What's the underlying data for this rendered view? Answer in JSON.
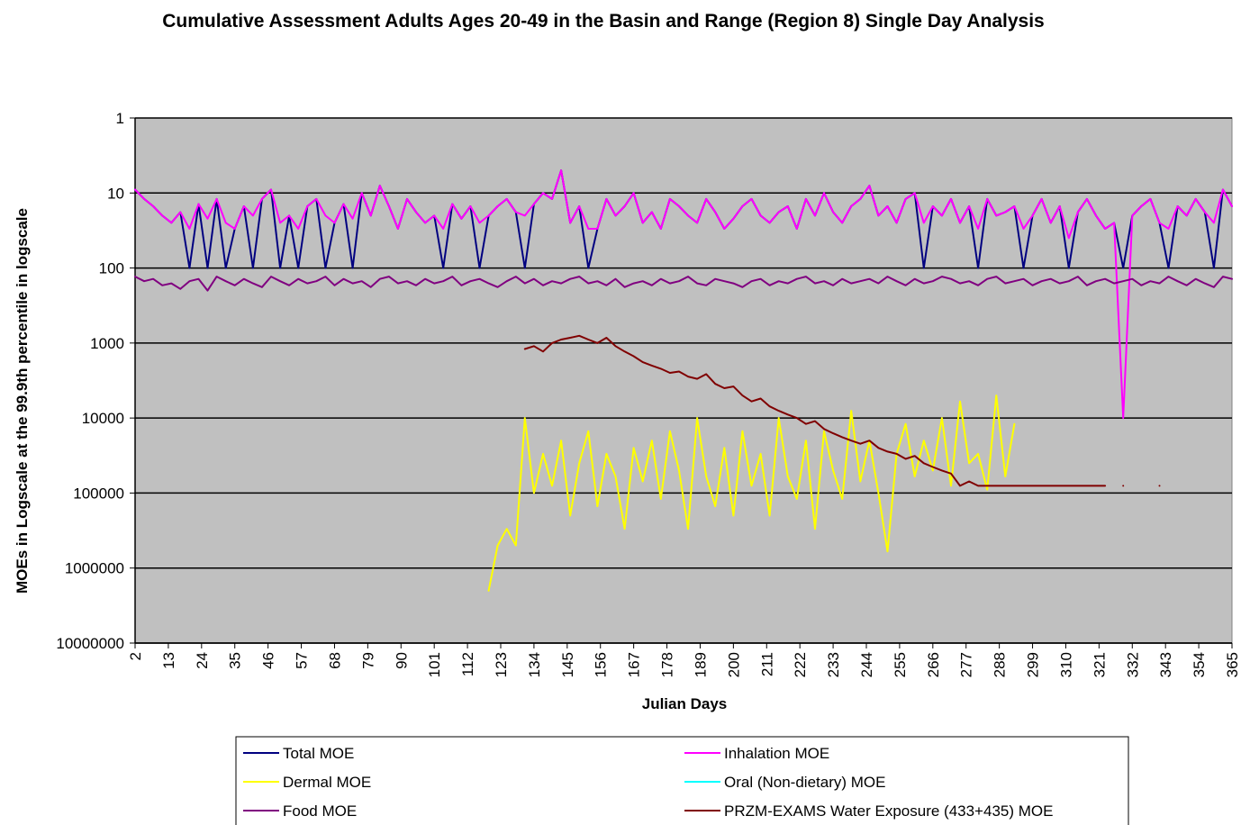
{
  "chart_data": {
    "type": "line",
    "title": "Cumulative Assessment Adults Ages 20-49 in the Basin and Range (Region 8) Single Day Analysis",
    "x_label": "Julian Days",
    "y_label": "MOEs in Logscale at the 99.9th percentile in logscale",
    "log_scale": true,
    "y_inverted": true,
    "grid": true,
    "legend": "bottom",
    "xlim": [
      2,
      365
    ],
    "xticks": [
      2,
      13,
      24,
      35,
      46,
      57,
      68,
      79,
      90,
      101,
      112,
      123,
      134,
      145,
      156,
      167,
      178,
      189,
      200,
      211,
      222,
      233,
      244,
      255,
      266,
      277,
      288,
      299,
      310,
      321,
      332,
      343,
      354,
      365
    ],
    "ylim": [
      1,
      10000000
    ],
    "yticks": [
      1,
      10,
      100,
      1000,
      10000,
      100000,
      1000000,
      10000000
    ],
    "x": [
      2,
      5,
      8,
      11,
      14,
      17,
      20,
      23,
      26,
      29,
      32,
      35,
      38,
      41,
      44,
      47,
      50,
      53,
      56,
      59,
      62,
      65,
      68,
      71,
      74,
      77,
      80,
      83,
      86,
      89,
      92,
      95,
      98,
      101,
      104,
      107,
      110,
      113,
      116,
      119,
      122,
      125,
      128,
      131,
      134,
      137,
      140,
      143,
      146,
      149,
      152,
      155,
      158,
      161,
      164,
      167,
      170,
      173,
      176,
      179,
      182,
      185,
      188,
      191,
      194,
      197,
      200,
      203,
      206,
      209,
      212,
      215,
      218,
      221,
      224,
      227,
      230,
      233,
      236,
      239,
      242,
      245,
      248,
      251,
      254,
      257,
      260,
      263,
      266,
      269,
      272,
      275,
      278,
      281,
      284,
      287,
      290,
      293,
      296,
      299,
      302,
      305,
      308,
      311,
      314,
      317,
      320,
      323,
      326,
      329,
      332,
      335,
      338,
      341,
      344,
      347,
      350,
      353,
      356,
      359,
      362,
      365
    ],
    "series": [
      {
        "name": "Total MOE",
        "color": "#000080",
        "values": [
          9,
          12,
          15,
          20,
          25,
          18,
          100,
          14,
          100,
          12,
          100,
          30,
          15,
          100,
          12,
          9,
          100,
          20,
          100,
          15,
          12,
          100,
          25,
          14,
          100,
          10,
          20,
          8,
          15,
          30,
          12,
          18,
          25,
          20,
          100,
          14,
          22,
          15,
          100,
          20,
          15,
          12,
          18,
          100,
          14,
          10,
          12,
          5,
          25,
          15,
          100,
          30,
          12,
          20,
          15,
          10,
          25,
          18,
          30,
          12,
          15,
          20,
          25,
          12,
          18,
          30,
          22,
          15,
          12,
          20,
          25,
          18,
          15,
          30,
          12,
          20,
          10,
          18,
          25,
          15,
          12,
          8,
          20,
          15,
          25,
          12,
          10,
          100,
          15,
          20,
          12,
          25,
          15,
          100,
          12,
          20,
          18,
          15,
          100,
          20,
          12,
          25,
          15,
          100,
          18,
          12,
          20,
          30,
          25,
          100,
          20,
          15,
          12,
          25,
          100,
          15,
          20,
          12,
          18,
          100,
          9,
          15
        ]
      },
      {
        "name": "Inhalation MOE",
        "color": "#ff00ff",
        "values": [
          9,
          12,
          15,
          20,
          25,
          18,
          30,
          14,
          22,
          12,
          25,
          30,
          15,
          20,
          12,
          9,
          25,
          20,
          30,
          15,
          12,
          20,
          25,
          14,
          22,
          10,
          20,
          8,
          15,
          30,
          12,
          18,
          25,
          20,
          30,
          14,
          22,
          15,
          25,
          20,
          15,
          12,
          18,
          20,
          14,
          10,
          12,
          5,
          25,
          15,
          30,
          30,
          12,
          20,
          15,
          10,
          25,
          18,
          30,
          12,
          15,
          20,
          25,
          12,
          18,
          30,
          22,
          15,
          12,
          20,
          25,
          18,
          15,
          30,
          12,
          20,
          10,
          18,
          25,
          15,
          12,
          8,
          20,
          15,
          25,
          12,
          10,
          25,
          15,
          20,
          12,
          25,
          15,
          30,
          12,
          20,
          18,
          15,
          30,
          20,
          12,
          25,
          15,
          40,
          18,
          12,
          20,
          30,
          25,
          10000,
          20,
          15,
          12,
          25,
          30,
          15,
          20,
          12,
          18,
          25,
          9,
          15
        ]
      },
      {
        "name": "Dermal MOE",
        "color": "#ffff00",
        "values": [
          null,
          null,
          null,
          null,
          null,
          null,
          null,
          null,
          null,
          null,
          null,
          null,
          null,
          null,
          null,
          null,
          null,
          null,
          null,
          null,
          null,
          null,
          null,
          null,
          null,
          null,
          null,
          null,
          null,
          null,
          null,
          null,
          null,
          null,
          null,
          null,
          null,
          null,
          null,
          2000000,
          500000,
          300000,
          500000,
          10000,
          100000,
          30000,
          80000,
          20000,
          200000,
          40000,
          15000,
          150000,
          30000,
          60000,
          300000,
          25000,
          70000,
          20000,
          120000,
          15000,
          50000,
          300000,
          10000,
          60000,
          150000,
          25000,
          200000,
          15000,
          80000,
          30000,
          200000,
          10000,
          60000,
          120000,
          20000,
          300000,
          15000,
          50000,
          120000,
          8000,
          70000,
          20000,
          100000,
          600000,
          30000,
          12000,
          60000,
          20000,
          50000,
          10000,
          80000,
          6000,
          40000,
          30000,
          90000,
          5000,
          60000,
          12000,
          null,
          null,
          null,
          null,
          null,
          null,
          null,
          null,
          null,
          null,
          null,
          null,
          null,
          null,
          null,
          null,
          null,
          null,
          null,
          null,
          null,
          null,
          null,
          null
        ]
      },
      {
        "name": "Oral (Non-dietary) MOE",
        "color": "#00ffff",
        "values": [
          null,
          null,
          null,
          null,
          null,
          null,
          null,
          null,
          null,
          null,
          null,
          null,
          null,
          null,
          null,
          null,
          null,
          null,
          null,
          null,
          null,
          null,
          null,
          null,
          null,
          null,
          null,
          null,
          null,
          null,
          null,
          null,
          null,
          null,
          null,
          null,
          null,
          null,
          null,
          null,
          null,
          null,
          null,
          null,
          null,
          null,
          null,
          null,
          null,
          null,
          null,
          null,
          null,
          null,
          null,
          null,
          null,
          null,
          null,
          null,
          null,
          null,
          null,
          null,
          null,
          null,
          null,
          null,
          null,
          null,
          null,
          null,
          null,
          null,
          null,
          null,
          null,
          null,
          null,
          null,
          null,
          null,
          null,
          null,
          null,
          null,
          null,
          null,
          null,
          null,
          null,
          null,
          null,
          null,
          null,
          null,
          null,
          null,
          null,
          null,
          null,
          null,
          null,
          null,
          null,
          null,
          null,
          null,
          null,
          null,
          null,
          null,
          null,
          null,
          null,
          null,
          null,
          null,
          null,
          null,
          null,
          null
        ]
      },
      {
        "name": "Food MOE",
        "color": "#800080",
        "values": [
          130,
          150,
          140,
          170,
          160,
          190,
          150,
          140,
          200,
          130,
          150,
          170,
          140,
          160,
          180,
          130,
          150,
          170,
          140,
          160,
          150,
          130,
          170,
          140,
          160,
          150,
          180,
          140,
          130,
          160,
          150,
          170,
          140,
          160,
          150,
          130,
          170,
          150,
          140,
          160,
          180,
          150,
          130,
          160,
          140,
          170,
          150,
          160,
          140,
          130,
          160,
          150,
          170,
          140,
          180,
          160,
          150,
          170,
          140,
          160,
          150,
          130,
          160,
          170,
          140,
          150,
          160,
          180,
          150,
          140,
          170,
          150,
          160,
          140,
          130,
          160,
          150,
          170,
          140,
          160,
          150,
          140,
          160,
          130,
          150,
          170,
          140,
          160,
          150,
          130,
          140,
          160,
          150,
          170,
          140,
          130,
          160,
          150,
          140,
          170,
          150,
          140,
          160,
          150,
          130,
          170,
          150,
          140,
          160,
          150,
          140,
          170,
          150,
          160,
          130,
          150,
          170,
          140,
          160,
          180,
          130,
          140
        ]
      },
      {
        "name": "PRZM-EXAMS Water Exposure (433+435) MOE",
        "color": "#800000",
        "values": [
          null,
          null,
          null,
          null,
          null,
          null,
          null,
          null,
          null,
          null,
          null,
          null,
          null,
          null,
          null,
          null,
          null,
          null,
          null,
          null,
          null,
          null,
          null,
          null,
          null,
          null,
          null,
          null,
          null,
          null,
          null,
          null,
          null,
          null,
          null,
          null,
          null,
          null,
          null,
          null,
          null,
          null,
          null,
          1200,
          1100,
          1300,
          1000,
          900,
          850,
          800,
          900,
          1000,
          850,
          1100,
          1300,
          1500,
          1800,
          2000,
          2200,
          2500,
          2400,
          2800,
          3000,
          2600,
          3500,
          4000,
          3800,
          5000,
          6000,
          5500,
          7000,
          8000,
          9000,
          10000,
          12000,
          11000,
          14000,
          16000,
          18000,
          20000,
          22000,
          20000,
          25000,
          28000,
          30000,
          35000,
          32000,
          40000,
          45000,
          50000,
          55000,
          80000,
          70000,
          80000,
          80000,
          80000,
          80000,
          80000,
          80000,
          80000,
          80000,
          80000,
          80000,
          80000,
          80000,
          80000,
          80000,
          80000,
          null,
          80000,
          null,
          null,
          null,
          80000,
          null,
          null,
          null,
          null,
          null,
          null,
          null,
          null
        ]
      }
    ]
  }
}
